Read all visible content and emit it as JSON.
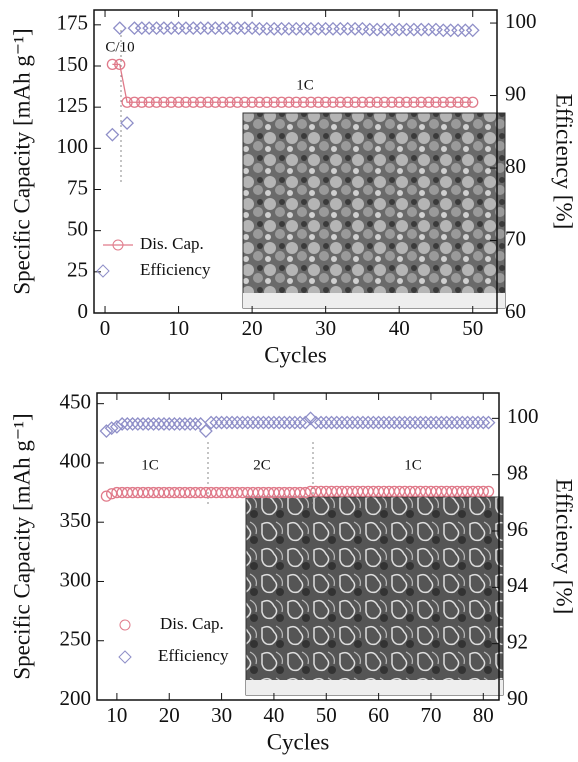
{
  "chart_data": [
    {
      "type": "line",
      "xlabel": "Cycles",
      "ylabel": "Specific Capacity [mAh g⁻¹]",
      "y2label": "Efficiency [%]",
      "annotations": [
        "C/10",
        "1C"
      ],
      "x": [
        1,
        2,
        3,
        4,
        5,
        6,
        7,
        8,
        9,
        10,
        11,
        12,
        13,
        14,
        15,
        16,
        17,
        18,
        19,
        20,
        21,
        22,
        23,
        24,
        25,
        26,
        27,
        28,
        29,
        30,
        31,
        32,
        33,
        34,
        35,
        36,
        37,
        38,
        39,
        40,
        41,
        42,
        43,
        44,
        45,
        46,
        47,
        48,
        49,
        50
      ],
      "series": [
        {
          "name": "Dis. Cap.",
          "color": "#e07a8a",
          "marker": "circle",
          "line": true,
          "values": [
            151,
            151,
            128,
            128,
            128,
            128,
            128,
            128,
            128,
            128,
            128,
            128,
            128,
            128,
            128,
            128,
            128,
            128,
            128,
            128,
            128,
            128,
            128,
            128,
            128,
            128,
            128,
            128,
            128,
            128,
            128,
            128,
            128,
            128,
            128,
            128,
            128,
            128,
            128,
            128,
            128,
            128,
            128,
            128,
            128,
            128,
            128,
            128,
            128,
            128
          ]
        },
        {
          "name": "Efficiency",
          "color": "#8f8fc8",
          "marker": "diamond",
          "line": false,
          "axis": "y2",
          "values": [
            84.6,
            99.3,
            86.2,
            99.3,
            99.3,
            99.3,
            99.3,
            99.3,
            99.3,
            99.3,
            99.3,
            99.3,
            99.3,
            99.3,
            99.3,
            99.3,
            99.3,
            99.3,
            99.3,
            99.3,
            99.2,
            99.2,
            99.2,
            99.2,
            99.2,
            99.2,
            99.2,
            99.2,
            99.2,
            99.2,
            99.2,
            99.2,
            99.2,
            99.2,
            99.2,
            99.1,
            99.1,
            99.1,
            99.1,
            99.1,
            99.1,
            99.1,
            99.1,
            99.1,
            99.1,
            99.0,
            99.0,
            99.0,
            99.0,
            99.0
          ]
        }
      ],
      "xlim": [
        -1.5,
        53.3
      ],
      "xticks": [
        0,
        10,
        20,
        30,
        40,
        50
      ],
      "ylim": [
        0,
        184
      ],
      "yticks": [
        0,
        25,
        50,
        75,
        100,
        125,
        150,
        175
      ],
      "y2lim": [
        60,
        101.8
      ],
      "y2ticks": [
        60,
        70,
        80,
        90,
        100
      ]
    },
    {
      "type": "scatter",
      "xlabel": "Cycles",
      "ylabel": "Specific Capacity [mAh g⁻¹]",
      "y2label": "Efficiency [%]",
      "annotations": [
        "1C",
        "2C",
        "1C"
      ],
      "x": [
        8,
        9,
        10,
        11,
        12,
        13,
        14,
        15,
        16,
        17,
        18,
        19,
        20,
        21,
        22,
        23,
        24,
        25,
        26,
        27,
        28,
        29,
        30,
        31,
        32,
        33,
        34,
        35,
        36,
        37,
        38,
        39,
        40,
        41,
        42,
        43,
        44,
        45,
        46,
        47,
        48,
        49,
        50,
        51,
        52,
        53,
        54,
        55,
        56,
        57,
        58,
        59,
        60,
        61,
        62,
        63,
        64,
        65,
        66,
        67,
        68,
        69,
        70,
        71,
        72,
        73,
        74,
        75,
        76,
        77,
        78,
        79,
        80,
        81
      ],
      "series": [
        {
          "name": "Dis. Cap.",
          "color": "#e07a8a",
          "marker": "circle",
          "line": false,
          "values": [
            372,
            374,
            375,
            375,
            375,
            375,
            375,
            375,
            375,
            375,
            375,
            375,
            375,
            375,
            375,
            375,
            375,
            375,
            375,
            375,
            375,
            375,
            375,
            375,
            375,
            375,
            375,
            375,
            375,
            375,
            375,
            375,
            375,
            375,
            375,
            375,
            375,
            375,
            375,
            376,
            376,
            376,
            376,
            376,
            376,
            376,
            376,
            376,
            376,
            376,
            376,
            376,
            376,
            376,
            376,
            376,
            376,
            376,
            376,
            376,
            376,
            376,
            376,
            376,
            376,
            376,
            376,
            376,
            376,
            376,
            376,
            376,
            376,
            376
          ]
        },
        {
          "name": "Efficiency",
          "color": "#8f8fc8",
          "marker": "diamond",
          "line": false,
          "axis": "y2",
          "values": [
            99.55,
            99.65,
            99.7,
            99.8,
            99.8,
            99.8,
            99.8,
            99.8,
            99.8,
            99.8,
            99.8,
            99.8,
            99.8,
            99.8,
            99.8,
            99.8,
            99.8,
            99.8,
            99.8,
            99.55,
            99.85,
            99.85,
            99.85,
            99.85,
            99.85,
            99.85,
            99.85,
            99.85,
            99.85,
            99.85,
            99.85,
            99.85,
            99.85,
            99.85,
            99.85,
            99.85,
            99.85,
            99.85,
            99.85,
            100.0,
            99.85,
            99.85,
            99.85,
            99.85,
            99.85,
            99.85,
            99.85,
            99.85,
            99.85,
            99.85,
            99.85,
            99.85,
            99.85,
            99.85,
            99.85,
            99.85,
            99.85,
            99.85,
            99.85,
            99.85,
            99.85,
            99.85,
            99.85,
            99.85,
            99.85,
            99.85,
            99.85,
            99.85,
            99.85,
            99.85,
            99.85,
            99.85,
            99.85,
            99.85
          ]
        }
      ],
      "xlim": [
        6.2,
        83
      ],
      "xticks": [
        10,
        20,
        30,
        40,
        50,
        60,
        70,
        80
      ],
      "ylim": [
        200,
        459
      ],
      "yticks": [
        200,
        250,
        300,
        350,
        400,
        450
      ],
      "y2lim": [
        90,
        100.9
      ],
      "y2ticks": [
        90,
        92,
        94,
        96,
        98,
        100
      ]
    }
  ]
}
